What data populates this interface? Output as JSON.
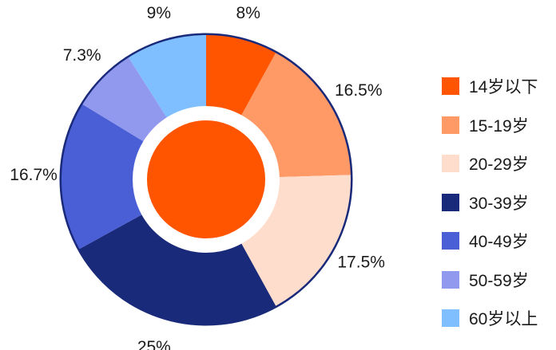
{
  "chart_data": {
    "type": "pie",
    "variant": "donut",
    "categories": [
      "14岁以下",
      "15-19岁",
      "20-29岁",
      "30-39岁",
      "40-49岁",
      "50-59岁",
      "60岁以上"
    ],
    "values": [
      8,
      16.5,
      17.5,
      25,
      16.7,
      7.3,
      9
    ],
    "value_labels": [
      "8%",
      "16.5%",
      "17.5%",
      "25%",
      "16.7%",
      "7.3%",
      "9%"
    ],
    "colors": [
      "#FF5500",
      "#FF9966",
      "#FFDDCC",
      "#1A2A7A",
      "#4A5FD6",
      "#9199EE",
      "#7FBFFF"
    ],
    "center_color": "#FF5500",
    "ring_color": "#1A2A7A",
    "legend_position": "right",
    "start_angle_deg": 0,
    "direction": "clockwise"
  }
}
